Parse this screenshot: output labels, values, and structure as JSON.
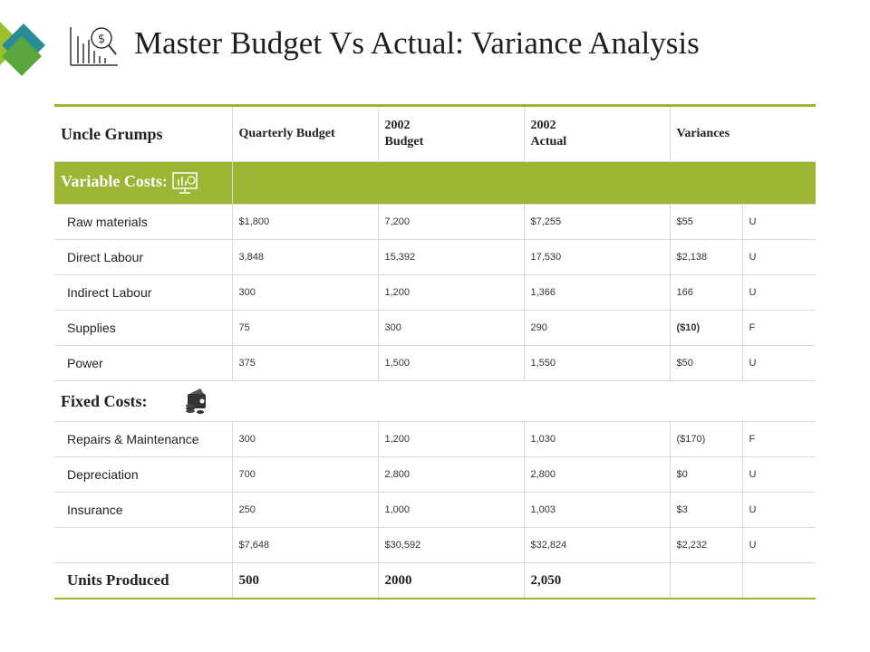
{
  "title": "Master Budget Vs Actual: Variance Analysis",
  "header": {
    "company": "Uncle Grumps",
    "quarterly_budget": "Quarterly Budget",
    "budget_year": "2002",
    "budget_label": "Budget",
    "actual_year": "2002",
    "actual_label": "Actual",
    "variances": "Variances"
  },
  "variable_costs_label": "Variable Costs:",
  "variable_rows": [
    {
      "item": "Raw materials",
      "quarterly": "$1,800",
      "budget": "7,200",
      "actual": "$7,255",
      "variance": "$55",
      "flag": "U"
    },
    {
      "item": "Direct Labour",
      "quarterly": "3,848",
      "budget": "15,392",
      "actual": "17,530",
      "variance": "$2,138",
      "flag": "U"
    },
    {
      "item": "Indirect Labour",
      "quarterly": "300",
      "budget": "1,200",
      "actual": "1,366",
      "variance": "166",
      "flag": "U"
    },
    {
      "item": "Supplies",
      "quarterly": "75",
      "budget": "300",
      "actual": "290",
      "variance": "($10)",
      "flag": "F"
    },
    {
      "item": "Power",
      "quarterly": "375",
      "budget": "1,500",
      "actual": "1,550",
      "variance": "$50",
      "flag": "U"
    }
  ],
  "fixed_costs_label": "Fixed Costs:",
  "fixed_rows": [
    {
      "item": "Repairs & Maintenance",
      "quarterly": "300",
      "budget": "1,200",
      "actual": "1,030",
      "variance": "($170)",
      "flag": "F"
    },
    {
      "item": "Depreciation",
      "quarterly": "700",
      "budget": "2,800",
      "actual": "2,800",
      "variance": "$0",
      "flag": "U"
    },
    {
      "item": "Insurance",
      "quarterly": "250",
      "budget": "1,000",
      "actual": "1,003",
      "variance": "$3",
      "flag": "U"
    }
  ],
  "total_row": {
    "item": "",
    "quarterly": "$7,648",
    "budget": "$30,592",
    "actual": "$32,824",
    "variance": "$2,232",
    "flag": "U"
  },
  "units_row": {
    "item": "Units Produced",
    "quarterly": "500",
    "budget": "2000",
    "actual": "2,050"
  },
  "colors": {
    "accent_green": "#9cb533",
    "logo_teal": "#2a8c96",
    "logo_green": "#5aa83c",
    "logo_lime": "#9cbf2e"
  },
  "icons": {
    "title": "financial-chart-dollar-icon",
    "variable_costs": "monitor-chart-icon",
    "fixed_costs": "wallet-coins-icon"
  }
}
